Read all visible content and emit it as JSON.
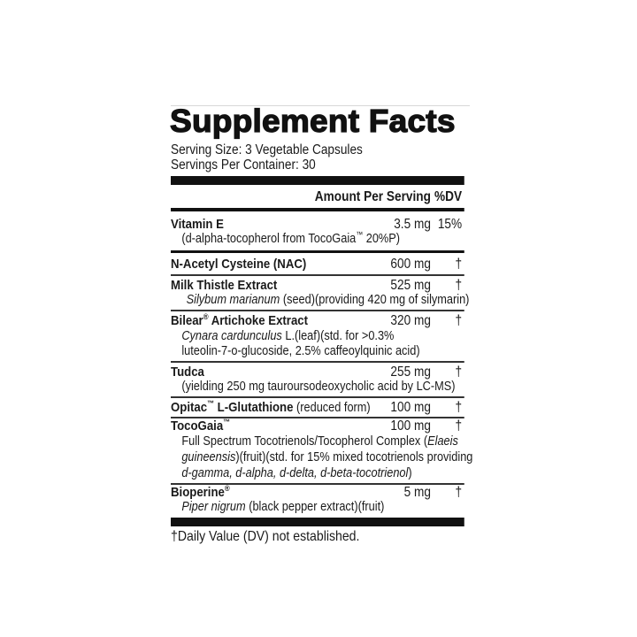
{
  "label": {
    "title": "Supplement Facts",
    "serving_size": "Serving Size: 3 Vegetable Capsules",
    "servings_per_container": "Servings Per Container: 30",
    "header_amount": "Amount Per Serving",
    "header_dv": "%DV",
    "ingredients": [
      {
        "name": "Vitamin E",
        "amount": "3.5 mg",
        "dv": "15%",
        "desc": [
          "(d-alpha-tocopherol from TocoGaia",
          "™",
          " 20%P)"
        ]
      },
      {
        "name": "N-Acetyl Cysteine (NAC)",
        "amount": "600 mg",
        "dv": "†"
      },
      {
        "name": "Milk Thistle Extract",
        "amount": "525 mg",
        "dv": "†",
        "desc_italic": "Silybum marianum",
        "desc": " (seed)(providing 420 mg of silymarin)"
      },
      {
        "name": "Bilear",
        "mark": "®",
        "name2": " Artichoke Extract",
        "amount": "320 mg",
        "dv": "†",
        "desc_italic": "Cynara cardunculus",
        "desc": " L.(leaf)(std. for >0.3%",
        "desc2": "luteolin-7-o-glucoside, 2.5% caffeoylquinic acid)"
      },
      {
        "name": "Tudca",
        "amount": "255 mg",
        "dv": "†",
        "desc": "(yielding 250 mg tauroursodeoxycholic acid by LC-MS)"
      },
      {
        "name": "Opitac",
        "mark": "™",
        "name2": " L-Glutathione",
        "note": " (reduced form)",
        "amount": "100 mg",
        "dv": "†"
      },
      {
        "name": "TocoGaia",
        "mark": "™",
        "amount": "100 mg",
        "dv": "†",
        "desc": "Full Spectrum Tocotrienols/Tocopherol Complex (",
        "desc_italic": "Elaeis",
        "desc2_italic": "guineensis",
        "desc2": ")(fruit)(std. for 15% mixed tocotrienols providing",
        "desc3_italic": "d-gamma, d-alpha, d-delta, d-beta-tocotrienol",
        "desc3": ")"
      },
      {
        "name": "Bioperine",
        "mark": "®",
        "amount": "5 mg",
        "dv": "†",
        "desc_italic": "Piper nigrum",
        "desc": " (black pepper extract)(fruit)"
      }
    ],
    "footnote": "†Daily Value (DV) not established."
  }
}
